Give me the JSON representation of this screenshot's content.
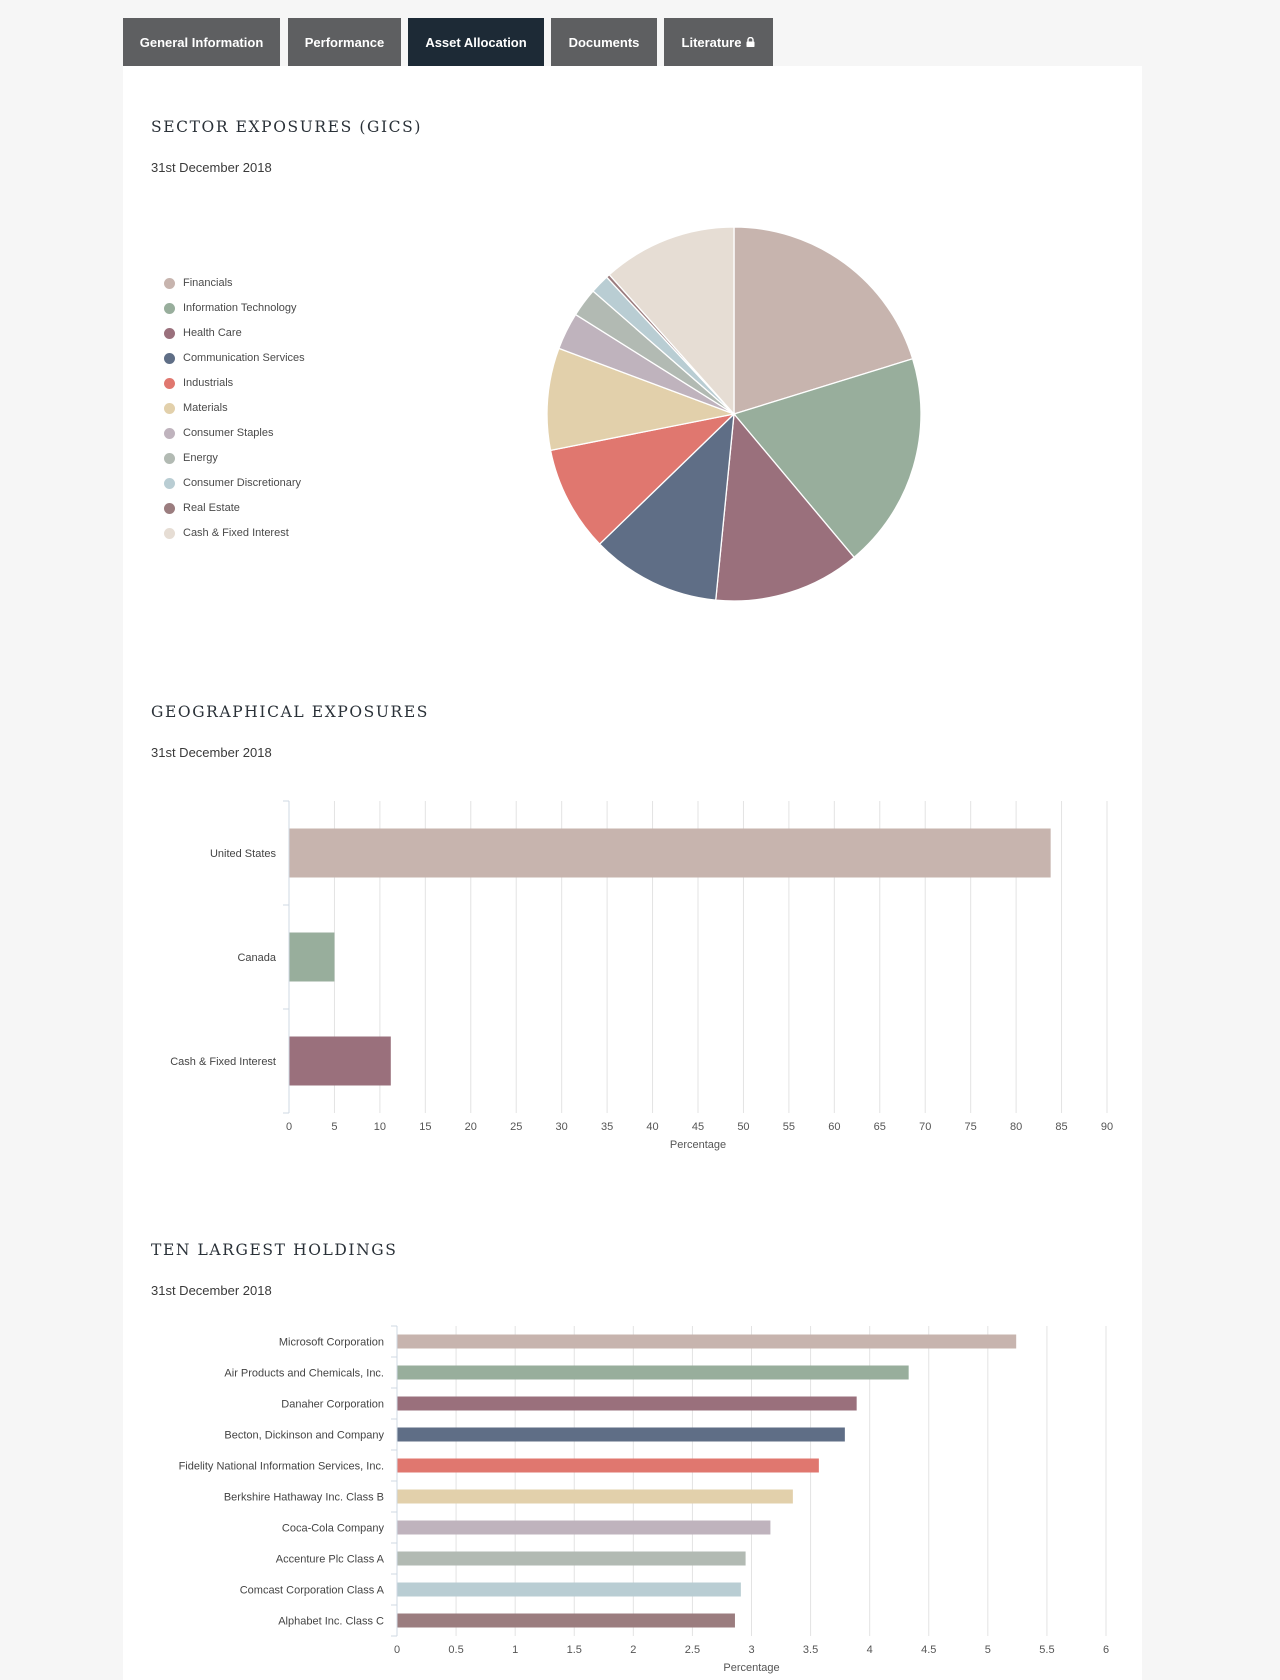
{
  "tabs": [
    {
      "label": "General Information",
      "active": false
    },
    {
      "label": "Performance",
      "active": false
    },
    {
      "label": "Asset Allocation",
      "active": true
    },
    {
      "label": "Documents",
      "active": false
    },
    {
      "label": "Literature",
      "active": false,
      "icon": "lock-icon"
    }
  ],
  "colors": {
    "tab_bg": "#5e5f61",
    "tab_active_bg": "#1d2a36",
    "palette": [
      "#c7b4ae",
      "#98ae9c",
      "#9a707c",
      "#5f6e86",
      "#e0776f",
      "#e2d0ab",
      "#bfb3bd",
      "#b2bab3",
      "#b9cdd3",
      "#9b7d7f",
      "#e6ddd4"
    ]
  },
  "sector": {
    "title": "SECTOR EXPOSURES (GICS)",
    "date": "31st December 2018"
  },
  "geo": {
    "title": "GEOGRAPHICAL EXPOSURES",
    "date": "31st December 2018"
  },
  "holdings": {
    "title": "TEN LARGEST HOLDINGS",
    "date": "31st December 2018"
  },
  "chart_data": [
    {
      "type": "pie",
      "title": "SECTOR EXPOSURES (GICS)",
      "legend": "left",
      "categories": [
        "Financials",
        "Information Technology",
        "Health Care",
        "Communication Services",
        "Industrials",
        "Materials",
        "Consumer Staples",
        "Energy",
        "Consumer Discretionary",
        "Real Estate",
        "Cash & Fixed Interest"
      ],
      "values": [
        19.5,
        18.0,
        12.2,
        10.8,
        8.8,
        8.5,
        3.1,
        2.4,
        1.6,
        0.3,
        11.2
      ]
    },
    {
      "type": "bar",
      "orientation": "horizontal",
      "title": "GEOGRAPHICAL EXPOSURES",
      "categories": [
        "United States",
        "Canada",
        "Cash & Fixed Interest"
      ],
      "values": [
        83.8,
        5.0,
        11.2
      ],
      "xlabel": "Percentage",
      "xlim": [
        0,
        90
      ],
      "xticks": [
        "0",
        "5",
        "10",
        "15",
        "20",
        "25",
        "30",
        "35",
        "40",
        "45",
        "50",
        "55",
        "60",
        "65",
        "70",
        "75",
        "80",
        "85",
        "90"
      ],
      "grid": true
    },
    {
      "type": "bar",
      "orientation": "horizontal",
      "title": "TEN LARGEST HOLDINGS",
      "categories": [
        "Microsoft Corporation",
        "Air Products and Chemicals, Inc.",
        "Danaher Corporation",
        "Becton, Dickinson and Company",
        "Fidelity National Information Services, Inc.",
        "Berkshire Hathaway Inc. Class B",
        "Coca-Cola Company",
        "Accenture Plc Class A",
        "Comcast Corporation Class A",
        "Alphabet Inc. Class C"
      ],
      "values": [
        5.24,
        4.33,
        3.89,
        3.79,
        3.57,
        3.35,
        3.16,
        2.95,
        2.91,
        2.86
      ],
      "xlabel": "Percentage",
      "xlim": [
        0,
        6
      ],
      "xticks": [
        "0",
        "0.5",
        "1",
        "1.5",
        "2",
        "2.5",
        "3",
        "3.5",
        "4",
        "4.5",
        "5",
        "5.5",
        "6"
      ],
      "grid": true
    }
  ]
}
